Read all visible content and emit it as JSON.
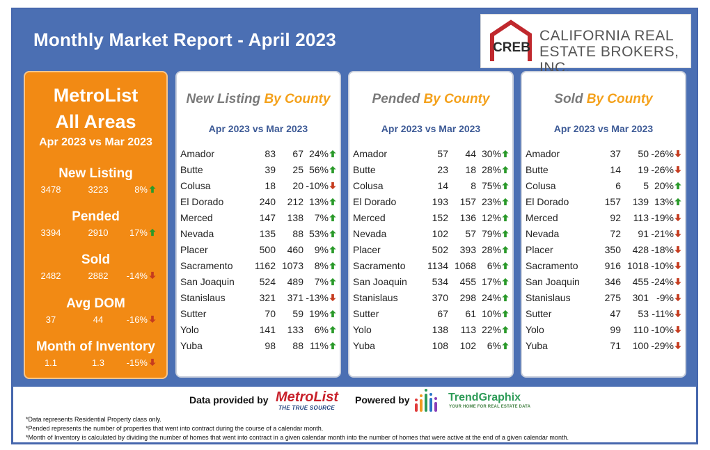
{
  "header": {
    "title": "Monthly Market Report - April 2023",
    "logo_mark": "CREB",
    "logo_line1": "CALIFORNIA REAL",
    "logo_line2": "ESTATE BROKERS, INC."
  },
  "colors": {
    "background_blue": "#4b6fb3",
    "metro_orange": "#f28a14",
    "title_orange": "#f4a11b",
    "up_green": "#2a9a2a",
    "down_red": "#c63b1e"
  },
  "metrolist": {
    "line1": "MetroList",
    "line2": "All Areas",
    "subtitle": "Apr 2023 vs Mar 2023",
    "metrics": [
      {
        "label": "New Listing",
        "current": "3478",
        "previous": "3223",
        "change": "8%",
        "direction": "up"
      },
      {
        "label": "Pended",
        "current": "3394",
        "previous": "2910",
        "change": "17%",
        "direction": "up"
      },
      {
        "label": "Sold",
        "current": "2482",
        "previous": "2882",
        "change": "-14%",
        "direction": "down"
      },
      {
        "label": "Avg DOM",
        "current": "37",
        "previous": "44",
        "change": "-16%",
        "direction": "down"
      },
      {
        "label": "Month of Inventory",
        "current": "1.1",
        "previous": "1.3",
        "change": "-15%",
        "direction": "down"
      }
    ]
  },
  "panels": [
    {
      "title_gray": "New Listing",
      "title_orange": "By County",
      "subtitle": "Apr 2023 vs Mar 2023",
      "rows": [
        {
          "county": "Amador",
          "current": "83",
          "previous": "67",
          "change": "24%",
          "direction": "up"
        },
        {
          "county": "Butte",
          "current": "39",
          "previous": "25",
          "change": "56%",
          "direction": "up"
        },
        {
          "county": "Colusa",
          "current": "18",
          "previous": "20",
          "change": "-10%",
          "direction": "down"
        },
        {
          "county": "El Dorado",
          "current": "240",
          "previous": "212",
          "change": "13%",
          "direction": "up"
        },
        {
          "county": "Merced",
          "current": "147",
          "previous": "138",
          "change": "7%",
          "direction": "up"
        },
        {
          "county": "Nevada",
          "current": "135",
          "previous": "88",
          "change": "53%",
          "direction": "up"
        },
        {
          "county": "Placer",
          "current": "500",
          "previous": "460",
          "change": "9%",
          "direction": "up"
        },
        {
          "county": "Sacramento",
          "current": "1162",
          "previous": "1073",
          "change": "8%",
          "direction": "up"
        },
        {
          "county": "San Joaquin",
          "current": "524",
          "previous": "489",
          "change": "7%",
          "direction": "up"
        },
        {
          "county": "Stanislaus",
          "current": "321",
          "previous": "371",
          "change": "-13%",
          "direction": "down"
        },
        {
          "county": "Sutter",
          "current": "70",
          "previous": "59",
          "change": "19%",
          "direction": "up"
        },
        {
          "county": "Yolo",
          "current": "141",
          "previous": "133",
          "change": "6%",
          "direction": "up"
        },
        {
          "county": "Yuba",
          "current": "98",
          "previous": "88",
          "change": "11%",
          "direction": "up"
        }
      ]
    },
    {
      "title_gray": "Pended",
      "title_orange": "By County",
      "subtitle": "Apr 2023 vs Mar 2023",
      "rows": [
        {
          "county": "Amador",
          "current": "57",
          "previous": "44",
          "change": "30%",
          "direction": "up"
        },
        {
          "county": "Butte",
          "current": "23",
          "previous": "18",
          "change": "28%",
          "direction": "up"
        },
        {
          "county": "Colusa",
          "current": "14",
          "previous": "8",
          "change": "75%",
          "direction": "up"
        },
        {
          "county": "El Dorado",
          "current": "193",
          "previous": "157",
          "change": "23%",
          "direction": "up"
        },
        {
          "county": "Merced",
          "current": "152",
          "previous": "136",
          "change": "12%",
          "direction": "up"
        },
        {
          "county": "Nevada",
          "current": "102",
          "previous": "57",
          "change": "79%",
          "direction": "up"
        },
        {
          "county": "Placer",
          "current": "502",
          "previous": "393",
          "change": "28%",
          "direction": "up"
        },
        {
          "county": "Sacramento",
          "current": "1134",
          "previous": "1068",
          "change": "6%",
          "direction": "up"
        },
        {
          "county": "San Joaquin",
          "current": "534",
          "previous": "455",
          "change": "17%",
          "direction": "up"
        },
        {
          "county": "Stanislaus",
          "current": "370",
          "previous": "298",
          "change": "24%",
          "direction": "up"
        },
        {
          "county": "Sutter",
          "current": "67",
          "previous": "61",
          "change": "10%",
          "direction": "up"
        },
        {
          "county": "Yolo",
          "current": "138",
          "previous": "113",
          "change": "22%",
          "direction": "up"
        },
        {
          "county": "Yuba",
          "current": "108",
          "previous": "102",
          "change": "6%",
          "direction": "up"
        }
      ]
    },
    {
      "title_gray": "Sold",
      "title_orange": "By County",
      "subtitle": "Apr 2023 vs Mar 2023",
      "rows": [
        {
          "county": "Amador",
          "current": "37",
          "previous": "50",
          "change": "-26%",
          "direction": "down"
        },
        {
          "county": "Butte",
          "current": "14",
          "previous": "19",
          "change": "-26%",
          "direction": "down"
        },
        {
          "county": "Colusa",
          "current": "6",
          "previous": "5",
          "change": "20%",
          "direction": "up"
        },
        {
          "county": "El Dorado",
          "current": "157",
          "previous": "139",
          "change": "13%",
          "direction": "up"
        },
        {
          "county": "Merced",
          "current": "92",
          "previous": "113",
          "change": "-19%",
          "direction": "down"
        },
        {
          "county": "Nevada",
          "current": "72",
          "previous": "91",
          "change": "-21%",
          "direction": "down"
        },
        {
          "county": "Placer",
          "current": "350",
          "previous": "428",
          "change": "-18%",
          "direction": "down"
        },
        {
          "county": "Sacramento",
          "current": "916",
          "previous": "1018",
          "change": "-10%",
          "direction": "down"
        },
        {
          "county": "San Joaquin",
          "current": "346",
          "previous": "455",
          "change": "-24%",
          "direction": "down"
        },
        {
          "county": "Stanislaus",
          "current": "275",
          "previous": "301",
          "change": "-9%",
          "direction": "down"
        },
        {
          "county": "Sutter",
          "current": "47",
          "previous": "53",
          "change": "-11%",
          "direction": "down"
        },
        {
          "county": "Yolo",
          "current": "99",
          "previous": "110",
          "change": "-10%",
          "direction": "down"
        },
        {
          "county": "Yuba",
          "current": "71",
          "previous": "100",
          "change": "-29%",
          "direction": "down"
        }
      ]
    }
  ],
  "footer": {
    "data_provided_by": "Data provided by",
    "metrolist_logo_text": "MetroList",
    "metrolist_tagline": "THE TRUE SOURCE",
    "powered_by": "Powered by",
    "trendgraphix_logo_text": "TrendGraphix",
    "trendgraphix_tagline": "YOUR HOME FOR REAL ESTATE DATA",
    "notes": [
      "*Data represents Residential Property class only.",
      "*Pended represents the number of properties that went into contract during the course of a calendar month.",
      "*Month of Inventory is calculated by dividing the number of homes that went into contract in a given calendar month into the number of homes that were active at the end of a given calendar month."
    ]
  }
}
